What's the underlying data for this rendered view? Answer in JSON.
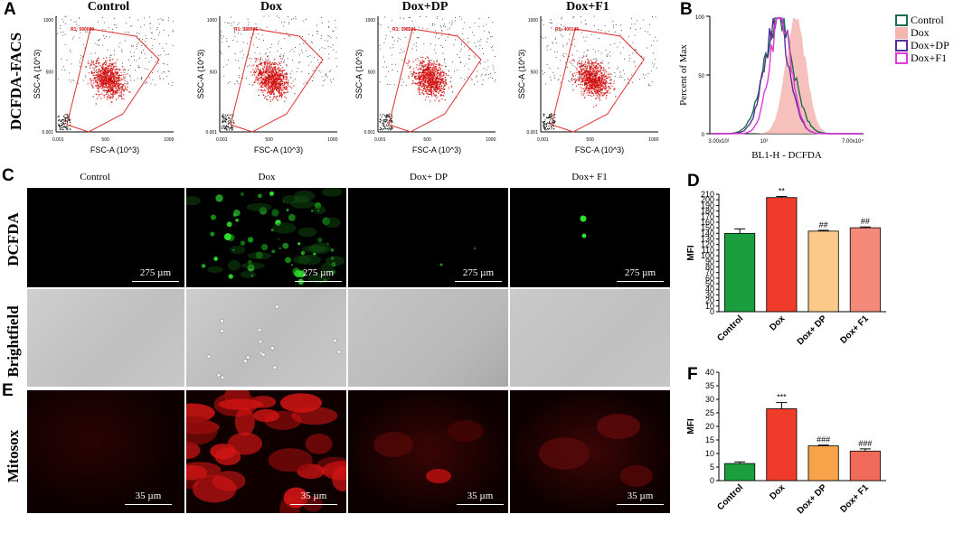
{
  "panels": {
    "a": "A",
    "b": "B",
    "c": "C",
    "d": "D",
    "e": "E",
    "f": "F"
  },
  "row_labels": {
    "facs": "DCFDA-FACS",
    "dcfda": "DCFDA",
    "brightfield": "Brightfield",
    "mitosox": "Mitosox"
  },
  "facs": {
    "titles": [
      "Control",
      "Dox",
      "Dox+DP",
      "Dox+F1"
    ],
    "gates": [
      "R1: 590080",
      "R1: 388905",
      "R1: 398501",
      "R1: 400145"
    ],
    "xlabel": "FSC-A (10^3)",
    "ylabel": "SSC-A (10^3)",
    "xticks": [
      "0.001",
      "500",
      "1000"
    ],
    "yticks": [
      "1000",
      "500",
      "0.001"
    ]
  },
  "histogram": {
    "xlabel": "BL1-H - DCFDA",
    "ylabel": "Percent of Max",
    "xtick_left": "3.00x10¹",
    "xtick_mid": "10³",
    "xtick_right": "7.00x10⁴",
    "yticks": [
      "0",
      "50",
      "100"
    ],
    "legend": [
      {
        "name": "Control",
        "color": "#1a6e4e"
      },
      {
        "name": "Dox",
        "color": "#f4b6b0"
      },
      {
        "name": "Dox+DP",
        "color": "#5b2c9c"
      },
      {
        "name": "Dox+F1",
        "color": "#e03ad8"
      }
    ]
  },
  "micro_titles": [
    "Control",
    "Dox",
    "Dox+ DP",
    "Dox+ F1"
  ],
  "scalebars": {
    "dcfda": "275 µm",
    "mitosox": "35 µm"
  },
  "colors": {
    "control": "#1a9e3e",
    "dox": "#f03a2a",
    "dox_dp_d": "#fbc98a",
    "dox_f1_d": "#f58a7a",
    "dox_dp_f": "#f8a24a",
    "dox_f1_f": "#f06a5a"
  },
  "chart_data": [
    {
      "type": "bar",
      "panel": "D",
      "categories": [
        "Control",
        "Dox",
        "Dox+ DP",
        "Dox+ F1"
      ],
      "values": [
        140,
        204,
        144,
        150
      ],
      "errors": [
        8,
        2,
        1.5,
        1.5
      ],
      "annotations": [
        "",
        "**",
        "##",
        "##"
      ],
      "ylabel": "MFI",
      "ylim": [
        0,
        210
      ],
      "yticks": [
        0,
        10,
        20,
        30,
        40,
        50,
        60,
        70,
        80,
        90,
        100,
        110,
        120,
        130,
        140,
        150,
        160,
        170,
        180,
        190,
        200,
        210
      ]
    },
    {
      "type": "bar",
      "panel": "F",
      "categories": [
        "Control",
        "Dox",
        "Dox+ DP",
        "Dox+ F1"
      ],
      "values": [
        6.3,
        26.5,
        12.8,
        10.9
      ],
      "errors": [
        0.6,
        2.3,
        0.3,
        0.8
      ],
      "annotations": [
        "",
        "***",
        "###",
        "###"
      ],
      "ylabel": "MFI",
      "ylim": [
        0,
        40
      ],
      "yticks": [
        0,
        5,
        10,
        15,
        20,
        25,
        30,
        35,
        40
      ]
    }
  ]
}
